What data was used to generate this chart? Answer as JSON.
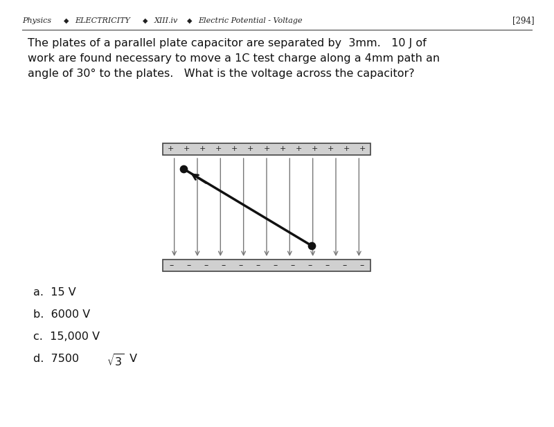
{
  "bg_color": "#ffffff",
  "header_items": [
    "Physics",
    "◆",
    "ELECTRICITY",
    "◆",
    "XIII.iv",
    "◆",
    "Electric Potential - Voltage"
  ],
  "header_right": "[294]",
  "question_lines": [
    "The plates of a parallel plate capacitor are separated by  3mm.   10 J of",
    "work are found necessary to move a 1C test charge along a 4mm path an",
    "angle of 30° to the plates.   What is the voltage across the capacitor?"
  ],
  "plate_color": "#d0d0d0",
  "plate_border": "#444444",
  "field_line_color": "#777777",
  "line_color": "#111111",
  "dot_color": "#111111",
  "num_field_lines": 9,
  "n_plus": 13,
  "n_minus": 12,
  "choices_a": "a.  15 V",
  "choices_b": "b.  6000 V",
  "choices_c": "c.  15,000 V",
  "choices_d_prefix": "d.  7500 ",
  "choices_d_suffix": " V"
}
